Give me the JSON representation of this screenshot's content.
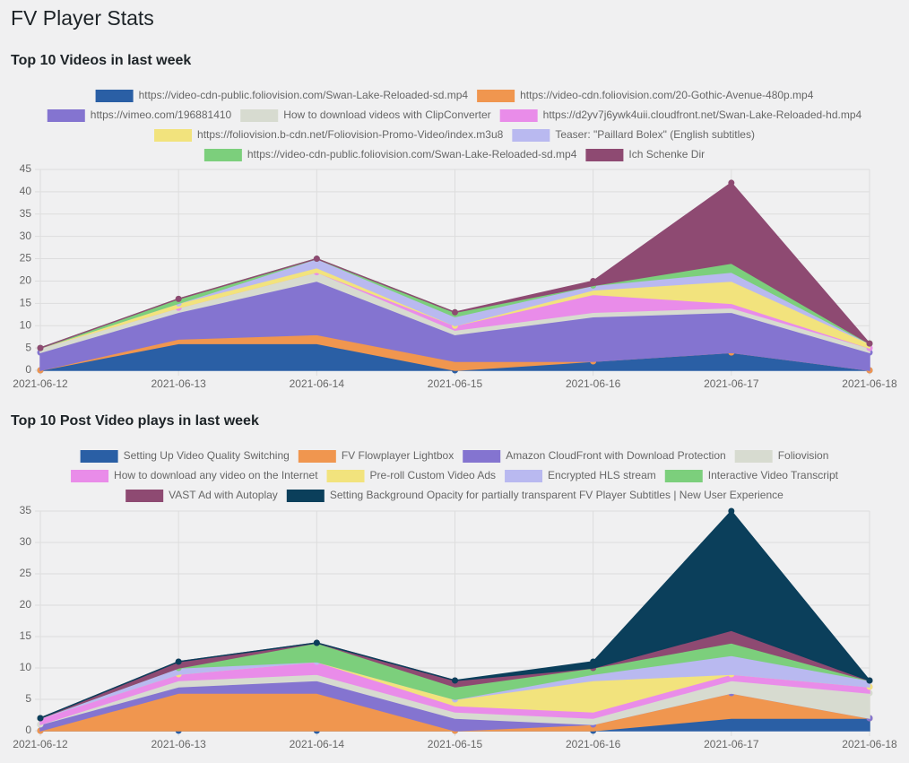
{
  "page_title": "FV Player Stats",
  "chart_data": [
    {
      "type": "area",
      "stacked": true,
      "title": "Top 10 Videos in last week",
      "categories": [
        "2021-06-12",
        "2021-06-13",
        "2021-06-14",
        "2021-06-15",
        "2021-06-16",
        "2021-06-17",
        "2021-06-18"
      ],
      "ylim": [
        0,
        45
      ],
      "yticks": [
        0,
        5,
        10,
        15,
        20,
        25,
        30,
        35,
        40,
        45
      ],
      "grid": true,
      "series": [
        {
          "name": "https://video-cdn-public.foliovision.com/Swan-Lake-Reloaded-sd.mp4",
          "color": "#2a5fa5",
          "values": [
            0,
            6,
            6,
            0,
            2,
            4,
            0
          ]
        },
        {
          "name": "https://video-cdn.foliovision.com/20-Gothic-Avenue-480p.mp4",
          "color": "#f0964f",
          "values": [
            0,
            1,
            2,
            2,
            0,
            0,
            0
          ]
        },
        {
          "name": "https://vimeo.com/196881410",
          "color": "#8474d0",
          "values": [
            4,
            6,
            12,
            6,
            10,
            9,
            4
          ]
        },
        {
          "name": "How to download videos with ClipConverter",
          "color": "#d7dbd0",
          "values": [
            1,
            1,
            2,
            1,
            1,
            1,
            1
          ]
        },
        {
          "name": "https://d2yv7j6ywk4uii.cloudfront.net/Swan-Lake-Reloaded-hd.mp4",
          "color": "#e98ce9",
          "values": [
            0,
            0,
            0,
            1,
            4,
            1,
            0
          ]
        },
        {
          "name": "https://foliovision.b-cdn.net/Foliovision-Promo-Video/index.m3u8",
          "color": "#f2e37d",
          "values": [
            0,
            1,
            1,
            0,
            1,
            5,
            1
          ]
        },
        {
          "name": "Teaser: \"Paillard Bolex\" (English subtitles)",
          "color": "#b9b9f0",
          "values": [
            0,
            0,
            2,
            2,
            1,
            2,
            0
          ]
        },
        {
          "name": "https://video-cdn-public.foliovision.com/Swan-Lake-Reloaded-sd.mp4",
          "color": "#7ccf7c",
          "values": [
            0,
            1,
            0,
            1,
            0,
            2,
            0
          ]
        },
        {
          "name": "Ich Schenke Dir",
          "color": "#8e4a72",
          "values": [
            0,
            0,
            0,
            0,
            1,
            18,
            0
          ]
        }
      ]
    },
    {
      "type": "area",
      "stacked": true,
      "title": "Top 10 Post Video plays in last week",
      "categories": [
        "2021-06-12",
        "2021-06-13",
        "2021-06-14",
        "2021-06-15",
        "2021-06-16",
        "2021-06-17",
        "2021-06-18"
      ],
      "ylim": [
        0,
        35
      ],
      "yticks": [
        0,
        5,
        10,
        15,
        20,
        25,
        30,
        35
      ],
      "grid": true,
      "series": [
        {
          "name": "Setting Up Video Quality Switching",
          "color": "#2a5fa5",
          "values": [
            0,
            0,
            0,
            0,
            0,
            2,
            2
          ]
        },
        {
          "name": "FV Flowplayer Lightbox",
          "color": "#f0964f",
          "values": [
            0,
            6,
            6,
            0,
            1,
            4,
            0
          ]
        },
        {
          "name": "Amazon CloudFront with Download Protection",
          "color": "#8474d0",
          "values": [
            1,
            1,
            2,
            2,
            0,
            0,
            0
          ]
        },
        {
          "name": "Foliovision",
          "color": "#d7dbd0",
          "values": [
            0,
            1,
            1,
            1,
            1,
            2,
            4
          ]
        },
        {
          "name": "How to download any video on the Internet",
          "color": "#e98ce9",
          "values": [
            1,
            1,
            2,
            1,
            1,
            1,
            1
          ]
        },
        {
          "name": "Pre-roll Custom Video Ads",
          "color": "#f2e37d",
          "values": [
            0,
            0,
            0,
            1,
            5,
            0,
            0
          ]
        },
        {
          "name": "Encrypted HLS stream",
          "color": "#b9b9f0",
          "values": [
            0,
            1,
            0,
            0,
            1,
            3,
            1
          ]
        },
        {
          "name": "Interactive Video Transcript",
          "color": "#7ccf7c",
          "values": [
            0,
            0,
            3,
            2,
            1,
            2,
            0
          ]
        },
        {
          "name": "VAST Ad with Autoplay",
          "color": "#8e4a72",
          "values": [
            0,
            1,
            0,
            1,
            0,
            2,
            0
          ]
        },
        {
          "name": "Setting Background Opacity for partially transparent FV Player Subtitles | New User Experience",
          "color": "#0b3f5b",
          "values": [
            0,
            0,
            0,
            0,
            1,
            19,
            0
          ]
        }
      ]
    }
  ]
}
